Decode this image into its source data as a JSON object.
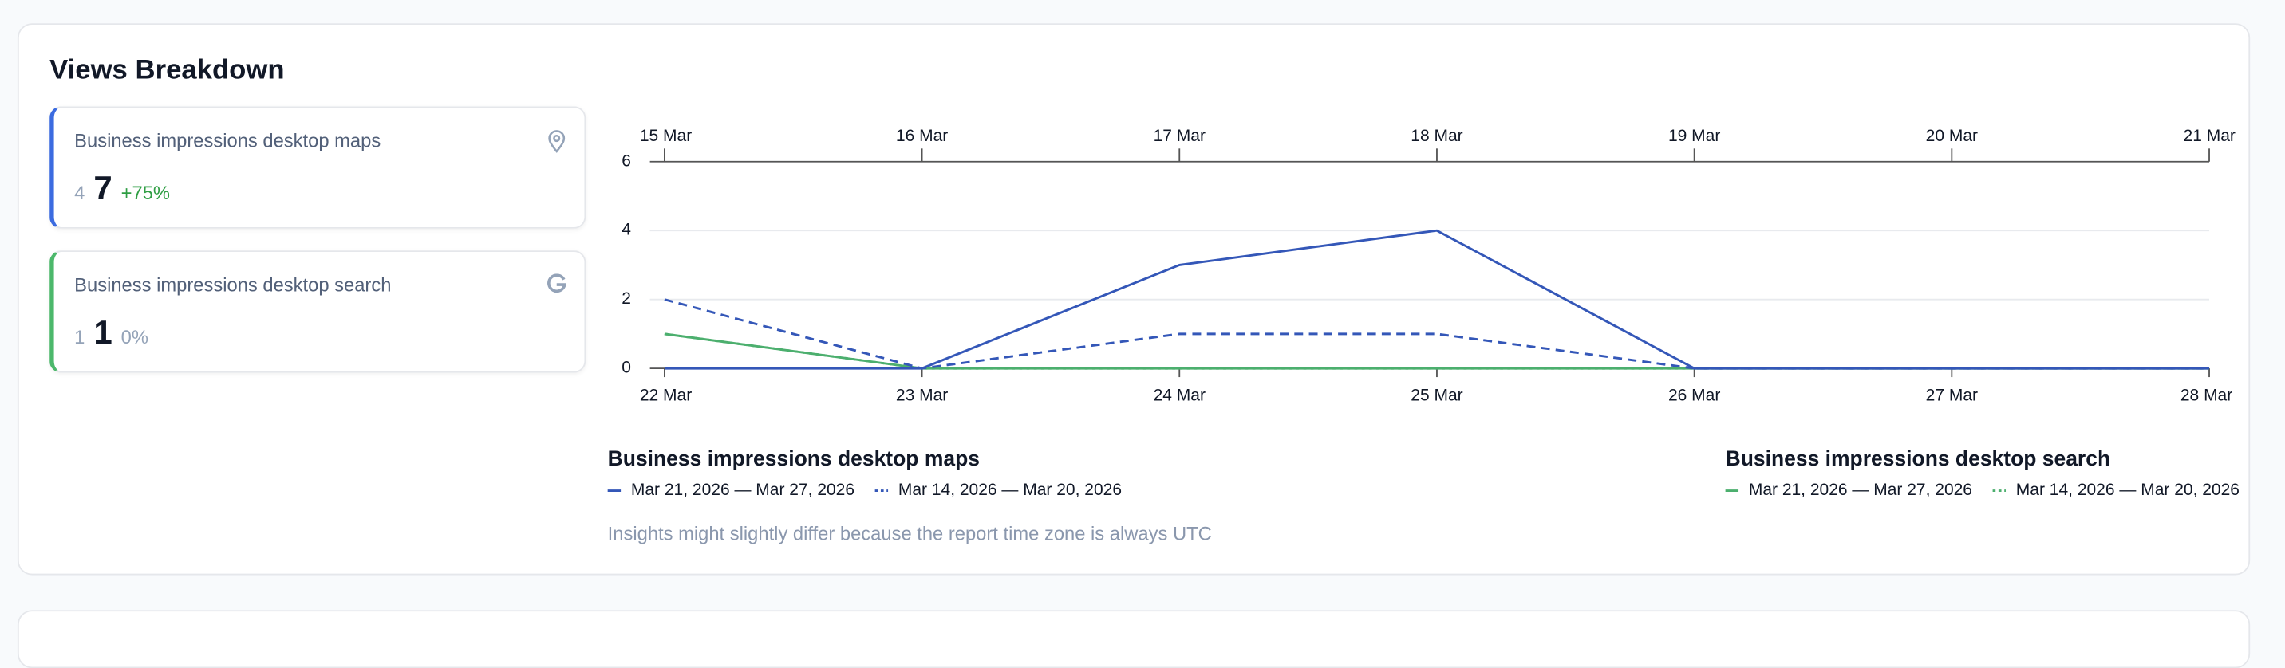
{
  "header": {
    "title": "Views Breakdown"
  },
  "cards": [
    {
      "title": "Business impressions desktop maps",
      "previous": 4,
      "current": 7,
      "change": "+75%",
      "accent": "#3b6be0",
      "change_color": "#2f9e44"
    },
    {
      "title": "Business impressions desktop search",
      "previous": 1,
      "current": 1,
      "change": "0%",
      "accent": "#4cb86b",
      "change_color": "#94a3b8"
    }
  ],
  "chart_data": {
    "type": "line",
    "categories": [
      "22 Mar",
      "23 Mar",
      "24 Mar",
      "25 Mar",
      "26 Mar",
      "27 Mar",
      "28 Mar"
    ],
    "top_categories": [
      "15 Mar",
      "16 Mar",
      "17 Mar",
      "18 Mar",
      "19 Mar",
      "20 Mar",
      "21 Mar"
    ],
    "ylim": [
      0,
      6
    ],
    "yticks": [
      0,
      2,
      4,
      6
    ],
    "grid": true,
    "legend_groups": [
      "Business impressions desktop maps",
      "Business impressions desktop search"
    ],
    "series": [
      {
        "group": 0,
        "name": "Mar 21, 2026 — Mar 27, 2026",
        "color": "#3457b8",
        "dash": "solid",
        "values": [
          0,
          0,
          3,
          4,
          0,
          0,
          0
        ]
      },
      {
        "group": 0,
        "name": "Mar 14, 2026 — Mar 20, 2026",
        "color": "#3457b8",
        "dash": "dashed",
        "values": [
          2,
          0,
          1,
          1,
          0,
          0,
          0
        ]
      },
      {
        "group": 1,
        "name": "Mar 21, 2026 — Mar 27, 2026",
        "color": "#4caf6e",
        "dash": "solid",
        "values": [
          1,
          0,
          0,
          0,
          0,
          0,
          0
        ]
      },
      {
        "group": 1,
        "name": "Mar 14, 2026 — Mar 20, 2026",
        "color": "#4caf6e",
        "dash": "dotted",
        "values": [
          1,
          0,
          0,
          0,
          0,
          0,
          0
        ]
      }
    ]
  },
  "note": "Insights might slightly differ because the report time zone is always UTC"
}
